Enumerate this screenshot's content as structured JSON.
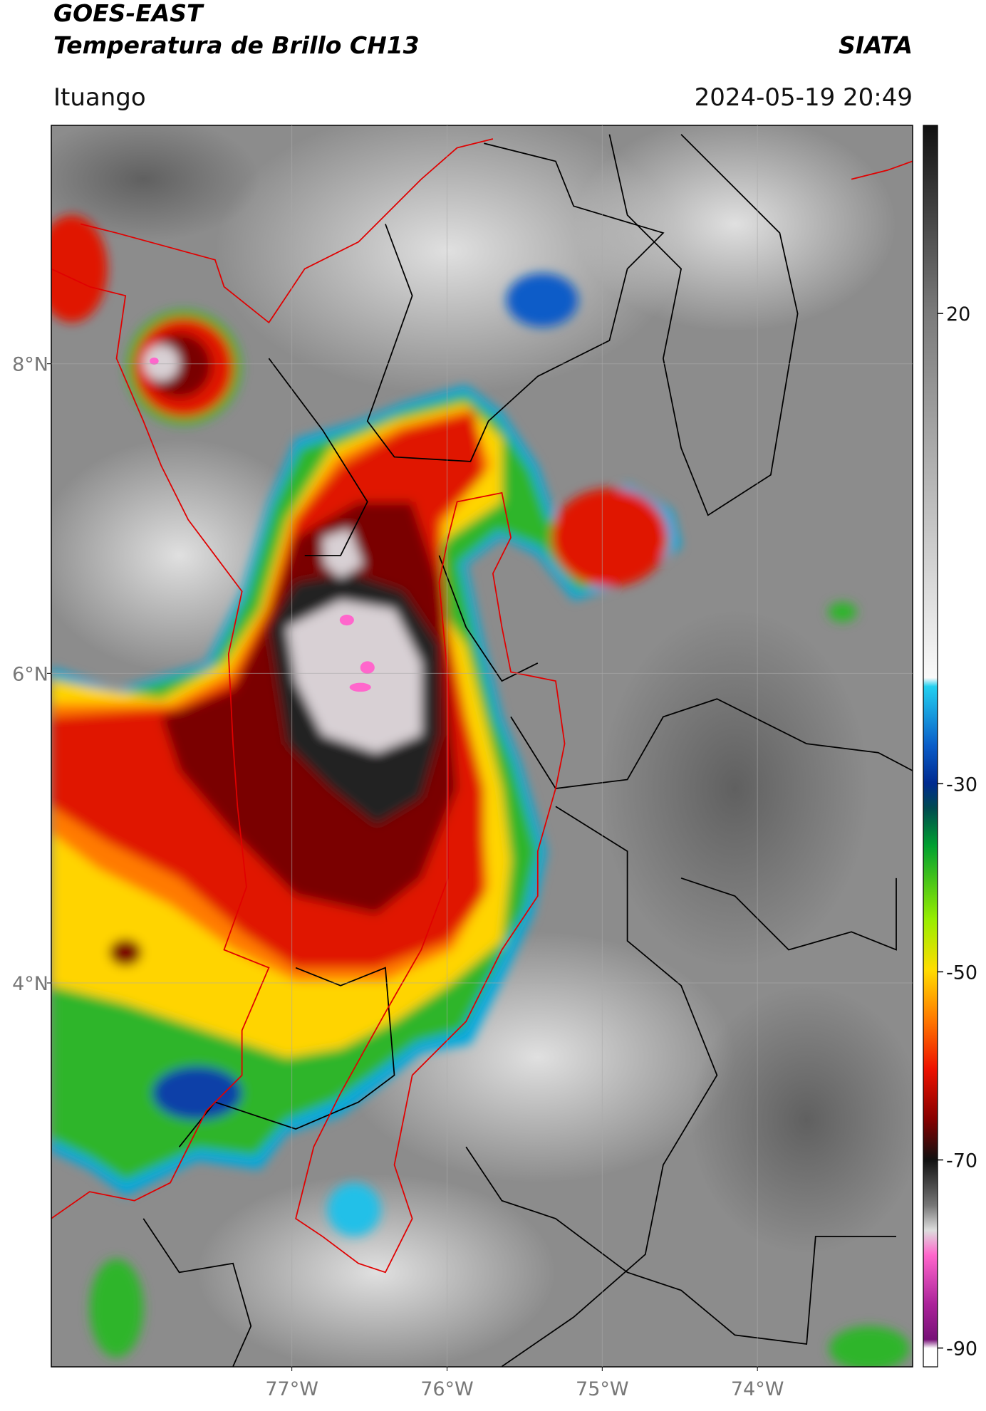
{
  "header": {
    "title": "GOES-EAST",
    "subtitle": "Temperatura de Brillo CH13",
    "source": "SIATA",
    "location": "Ituango",
    "timestamp": "2024-05-19 20:49"
  },
  "map": {
    "lon_range": [
      -78.55,
      -73.0
    ],
    "lat_range": [
      1.52,
      9.54
    ],
    "lon_ticks": [
      {
        "value": -77,
        "label": "77°W"
      },
      {
        "value": -76,
        "label": "76°W"
      },
      {
        "value": -75,
        "label": "75°W"
      },
      {
        "value": -74,
        "label": "74°W"
      }
    ],
    "lat_ticks": [
      {
        "value": 8,
        "label": "8°N"
      },
      {
        "value": 6,
        "label": "6°N"
      },
      {
        "value": 4,
        "label": "4°N"
      }
    ]
  },
  "colorbar": {
    "range": [
      -92,
      40
    ],
    "ticks": [
      20,
      -30,
      -50,
      -70,
      -90
    ]
  }
}
